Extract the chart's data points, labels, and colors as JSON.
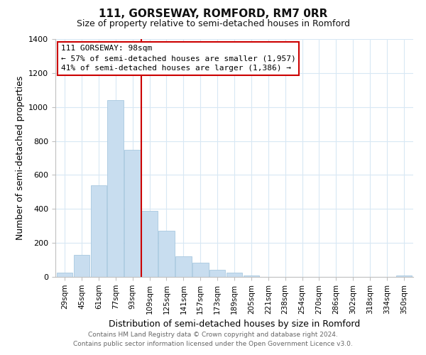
{
  "title": "111, GORSEWAY, ROMFORD, RM7 0RR",
  "subtitle": "Size of property relative to semi-detached houses in Romford",
  "xlabel": "Distribution of semi-detached houses by size in Romford",
  "ylabel": "Number of semi-detached properties",
  "footnote1": "Contains HM Land Registry data © Crown copyright and database right 2024.",
  "footnote2": "Contains public sector information licensed under the Open Government Licence v3.0.",
  "bar_color": "#c8ddef",
  "bar_edge_color": "#a8c8e0",
  "vline_color": "#cc0000",
  "annotation_title": "111 GORSEWAY: 98sqm",
  "annotation_line1": "← 57% of semi-detached houses are smaller (1,957)",
  "annotation_line2": "41% of semi-detached houses are larger (1,386) →",
  "annotation_box_color": "#ffffff",
  "annotation_box_edge": "#cc0000",
  "categories": [
    "29sqm",
    "45sqm",
    "61sqm",
    "77sqm",
    "93sqm",
    "109sqm",
    "125sqm",
    "141sqm",
    "157sqm",
    "173sqm",
    "189sqm",
    "205sqm",
    "221sqm",
    "238sqm",
    "254sqm",
    "270sqm",
    "286sqm",
    "302sqm",
    "318sqm",
    "334sqm",
    "350sqm"
  ],
  "values": [
    25,
    130,
    540,
    1040,
    750,
    390,
    270,
    120,
    82,
    42,
    25,
    8,
    2,
    0,
    0,
    0,
    0,
    0,
    0,
    0,
    8
  ],
  "ylim": [
    0,
    1400
  ],
  "yticks": [
    0,
    200,
    400,
    600,
    800,
    1000,
    1200,
    1400
  ],
  "vline_bar_index": 4,
  "grid_color": "#d8e8f4",
  "spine_color": "#c0c0c0",
  "title_fontsize": 11,
  "subtitle_fontsize": 9,
  "ylabel_fontsize": 9,
  "xlabel_fontsize": 9,
  "tick_fontsize": 8,
  "footnote_fontsize": 6.5,
  "footnote_color": "#666666"
}
